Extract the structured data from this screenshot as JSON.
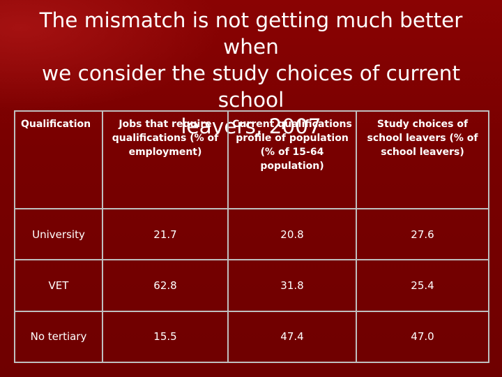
{
  "slide": {
    "title_line1": "The mismatch is not getting much better when",
    "title_line2": "we consider the study choices of current school",
    "title_line3": "leavers, 2007"
  },
  "table": {
    "headers": [
      "Qualification",
      "Jobs that require qualifications (% of employment)",
      "Current qualifications profile of population (% of 15-64 population)",
      "Study choices of school leavers (% of school leavers)"
    ],
    "rows": [
      [
        "University",
        "21.7",
        "20.8",
        "27.6"
      ],
      [
        "VET",
        "62.8",
        "31.8",
        "25.4"
      ],
      [
        "No tertiary",
        "15.5",
        "47.4",
        "47.0"
      ]
    ]
  },
  "colors": {
    "background": "#7a0000",
    "text": "#ffffff",
    "table_border": "#bfbfbf"
  }
}
